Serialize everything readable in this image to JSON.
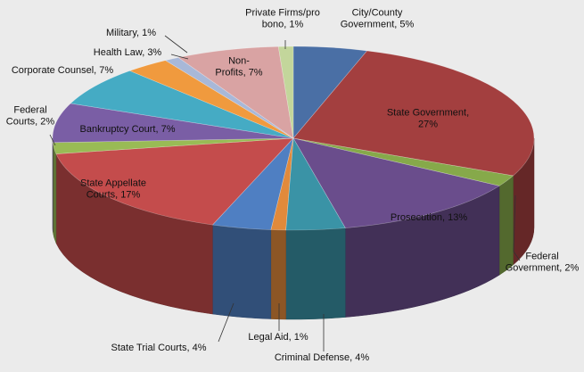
{
  "chart_data": {
    "type": "pie",
    "title": "",
    "grid": false,
    "legend": "none",
    "slices": [
      {
        "name": "City/County Government",
        "label_lines": [
          "City/County",
          "Government,  5%"
        ],
        "value": 5,
        "color": "#4a6fa5"
      },
      {
        "name": "State Government",
        "label_lines": [
          "State Government,",
          "27%"
        ],
        "value": 27,
        "color": "#a33f3f"
      },
      {
        "name": "Federal Government",
        "label_lines": [
          "Federal",
          "Government,  2%"
        ],
        "value": 2,
        "color": "#86a94a"
      },
      {
        "name": "Prosecution",
        "label_lines": [
          "Prosecution, 13%"
        ],
        "value": 13,
        "color": "#6a4d8c"
      },
      {
        "name": "Criminal Defense",
        "label_lines": [
          "Criminal Defense, 4%"
        ],
        "value": 4,
        "color": "#3a93a6"
      },
      {
        "name": "Legal Aid",
        "label_lines": [
          "Legal Aid, 1%"
        ],
        "value": 1,
        "color": "#e18a3b"
      },
      {
        "name": "State Trial Courts",
        "label_lines": [
          "State Trial Courts, 4%"
        ],
        "value": 4,
        "color": "#4f7fc2"
      },
      {
        "name": "State Appellate Courts",
        "label_lines": [
          "State Appellate",
          "Courts, 17%"
        ],
        "value": 17,
        "color": "#c44c4c"
      },
      {
        "name": "Federal Courts",
        "label_lines": [
          "Federal",
          "Courts, 2%"
        ],
        "value": 2,
        "color": "#99bb55"
      },
      {
        "name": "Bankruptcy Court",
        "label_lines": [
          "Bankruptcy Court, 7%"
        ],
        "value": 7,
        "color": "#7a5ea5"
      },
      {
        "name": "Corporate Counsel",
        "label_lines": [
          "Corporate Counsel, 7%"
        ],
        "value": 7,
        "color": "#45abc4"
      },
      {
        "name": "Health Law",
        "label_lines": [
          "Health Law, 3%"
        ],
        "value": 3,
        "color": "#f09a3e"
      },
      {
        "name": "Military",
        "label_lines": [
          "Military, 1%"
        ],
        "value": 1,
        "color": "#a8b8d8"
      },
      {
        "name": "Non-Profits",
        "label_lines": [
          "Non-",
          "Profits, 7%"
        ],
        "value": 7,
        "color": "#d9a3a3"
      },
      {
        "name": "Private Firms/pro bono",
        "label_lines": [
          "Private Firms/pro",
          "bono, 1%"
        ],
        "value": 1,
        "color": "#c3d69b"
      }
    ]
  }
}
